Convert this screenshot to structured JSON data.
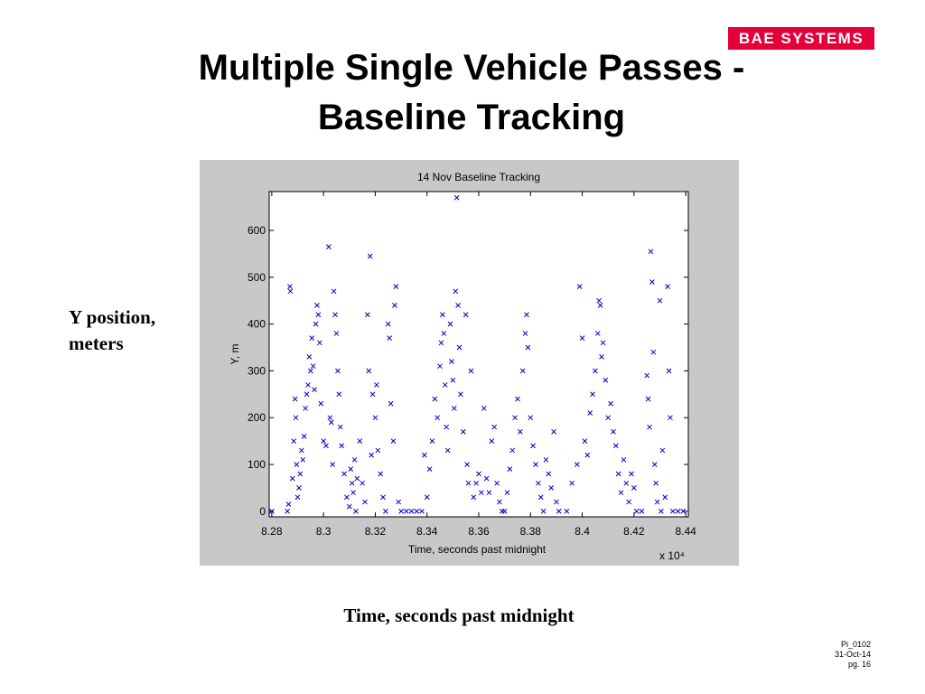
{
  "logo": "BAE SYSTEMS",
  "title_lines": [
    "Multiple Single Vehicle Passes -",
    "Baseline Tracking"
  ],
  "side_label_lines": [
    "Y position,",
    "meters"
  ],
  "bottom_label": "Time, seconds past midnight",
  "footer_lines": [
    "Pi_0102",
    "31-Oct-14",
    "pg. 16"
  ],
  "chart_data": {
    "type": "scatter",
    "title": "14 Nov Baseline Tracking",
    "xlabel": "Time, seconds past midnight",
    "ylabel": "Y, m",
    "x_multiplier": "x 10⁴",
    "color": "#0000cc",
    "marker": "x",
    "xlim": [
      8.279,
      8.441
    ],
    "ylim": [
      -12,
      683
    ],
    "xticks": [
      8.28,
      8.3,
      8.32,
      8.34,
      8.36,
      8.38,
      8.4,
      8.42,
      8.44
    ],
    "yticks": [
      0,
      100,
      200,
      300,
      400,
      500,
      600
    ],
    "x": [
      8.28,
      8.286,
      8.2865,
      8.287,
      8.2872,
      8.288,
      8.2885,
      8.289,
      8.2893,
      8.2896,
      8.29,
      8.2905,
      8.291,
      8.2915,
      8.292,
      8.2925,
      8.293,
      8.2935,
      8.294,
      8.2945,
      8.295,
      8.2955,
      8.296,
      8.2965,
      8.297,
      8.2975,
      8.298,
      8.2985,
      8.299,
      8.3,
      8.301,
      8.302,
      8.3025,
      8.303,
      8.3035,
      8.304,
      8.3045,
      8.305,
      8.3055,
      8.306,
      8.3065,
      8.307,
      8.308,
      8.309,
      8.31,
      8.3105,
      8.311,
      8.3115,
      8.312,
      8.3125,
      8.313,
      8.314,
      8.315,
      8.316,
      8.317,
      8.3175,
      8.318,
      8.3185,
      8.319,
      8.32,
      8.3205,
      8.321,
      8.322,
      8.323,
      8.324,
      8.325,
      8.3255,
      8.326,
      8.327,
      8.3275,
      8.328,
      8.329,
      8.33,
      8.332,
      8.334,
      8.336,
      8.338,
      8.339,
      8.34,
      8.341,
      8.342,
      8.343,
      8.344,
      8.345,
      8.3455,
      8.346,
      8.3465,
      8.347,
      8.3475,
      8.348,
      8.349,
      8.3495,
      8.35,
      8.3505,
      8.351,
      8.3515,
      8.352,
      8.3525,
      8.353,
      8.354,
      8.355,
      8.3555,
      8.356,
      8.357,
      8.358,
      8.359,
      8.36,
      8.361,
      8.362,
      8.363,
      8.364,
      8.365,
      8.366,
      8.367,
      8.368,
      8.369,
      8.37,
      8.371,
      8.372,
      8.373,
      8.374,
      8.375,
      8.376,
      8.377,
      8.378,
      8.3785,
      8.379,
      8.38,
      8.381,
      8.382,
      8.383,
      8.384,
      8.385,
      8.386,
      8.387,
      8.388,
      8.389,
      8.39,
      8.391,
      8.394,
      8.396,
      8.398,
      8.399,
      8.4,
      8.401,
      8.402,
      8.403,
      8.404,
      8.405,
      8.406,
      8.4065,
      8.407,
      8.4075,
      8.408,
      8.409,
      8.41,
      8.411,
      8.412,
      8.413,
      8.414,
      8.415,
      8.416,
      8.417,
      8.418,
      8.419,
      8.42,
      8.421,
      8.423,
      8.425,
      8.4255,
      8.426,
      8.4265,
      8.427,
      8.4275,
      8.428,
      8.4285,
      8.429,
      8.43,
      8.4305,
      8.431,
      8.432,
      8.433,
      8.4335,
      8.434,
      8.435,
      8.437,
      8.439
    ],
    "y": [
      0,
      0,
      15,
      480,
      470,
      70,
      150,
      240,
      200,
      100,
      30,
      50,
      80,
      130,
      110,
      160,
      220,
      250,
      270,
      330,
      300,
      370,
      310,
      260,
      400,
      440,
      420,
      360,
      230,
      150,
      140,
      565,
      200,
      190,
      100,
      470,
      420,
      380,
      300,
      250,
      180,
      140,
      80,
      30,
      10,
      90,
      60,
      40,
      110,
      0,
      70,
      150,
      60,
      20,
      420,
      300,
      545,
      120,
      250,
      200,
      270,
      130,
      80,
      30,
      0,
      400,
      370,
      230,
      150,
      440,
      480,
      20,
      0,
      0,
      0,
      0,
      0,
      120,
      30,
      90,
      150,
      240,
      200,
      310,
      360,
      420,
      380,
      270,
      180,
      130,
      400,
      320,
      280,
      220,
      470,
      670,
      440,
      350,
      250,
      170,
      420,
      100,
      60,
      300,
      30,
      60,
      80,
      40,
      220,
      70,
      40,
      150,
      180,
      60,
      20,
      0,
      0,
      40,
      90,
      130,
      200,
      240,
      170,
      300,
      380,
      420,
      350,
      200,
      140,
      100,
      60,
      30,
      0,
      110,
      80,
      50,
      170,
      20,
      0,
      0,
      60,
      100,
      480,
      370,
      150,
      120,
      210,
      250,
      300,
      380,
      450,
      440,
      330,
      360,
      280,
      200,
      230,
      170,
      140,
      80,
      40,
      110,
      60,
      20,
      80,
      50,
      0,
      0,
      290,
      240,
      180,
      555,
      490,
      340,
      100,
      60,
      20,
      450,
      0,
      130,
      30,
      480,
      300,
      200,
      0,
      0,
      0
    ]
  }
}
